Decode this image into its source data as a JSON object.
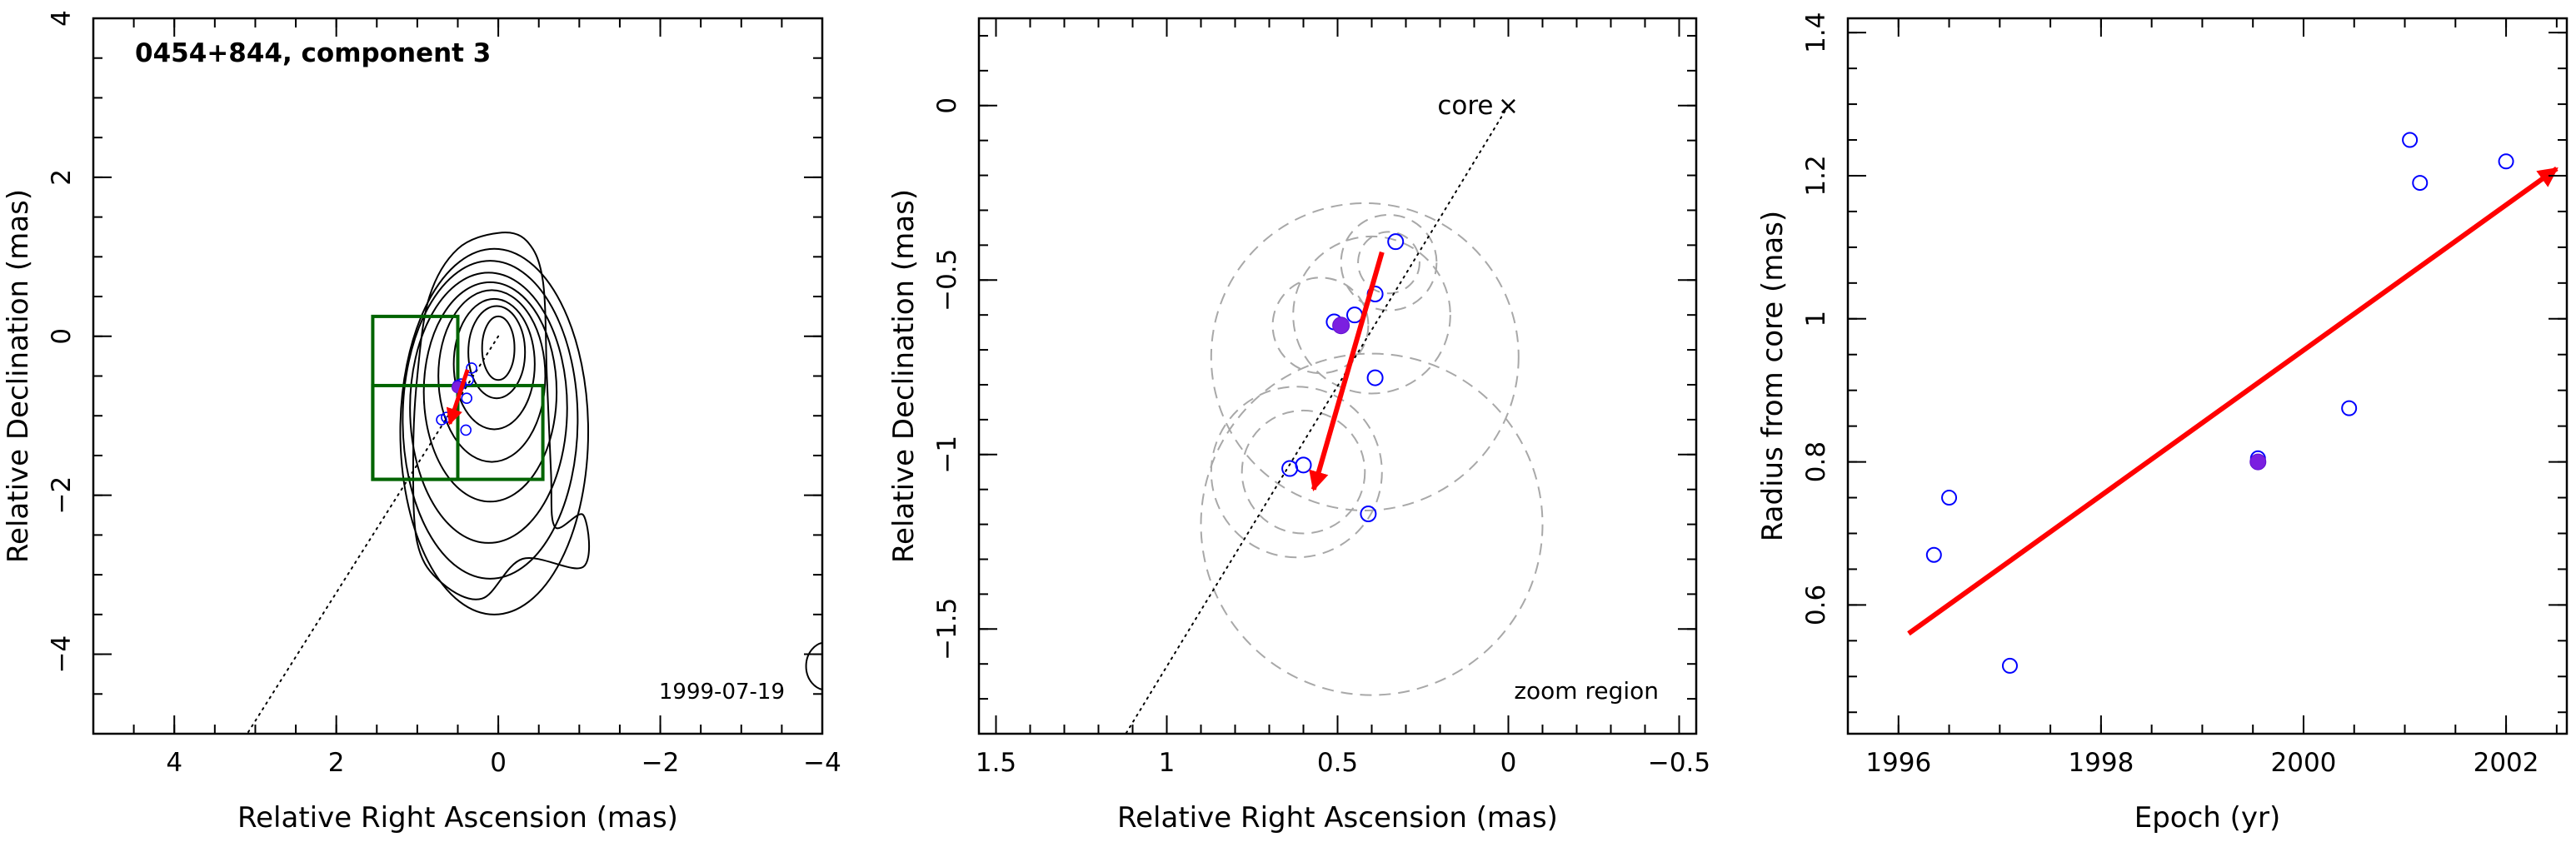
{
  "chart_data": [
    {
      "type": "scatter",
      "panel": "map",
      "title": "0454+844, component 3",
      "annotation": "1999-07-19",
      "xlabel": "Relative Right Ascension (mas)",
      "ylabel": "Relative Declination (mas)",
      "xlim": [
        5,
        -4
      ],
      "ylim": [
        -5,
        4
      ],
      "xticks": [
        4,
        2,
        0,
        -2,
        -4
      ],
      "yticks": [
        -4,
        -2,
        0,
        2,
        4
      ],
      "points": [
        [
          0.7,
          -1.05
        ],
        [
          0.64,
          -1.02
        ],
        [
          0.4,
          -1.18
        ],
        [
          0.5,
          -0.62
        ],
        [
          0.46,
          -0.6
        ],
        [
          0.37,
          -0.55
        ],
        [
          0.33,
          -0.4
        ],
        [
          0.39,
          -0.78
        ]
      ],
      "highlight": [
        0.5,
        -0.64
      ],
      "arrow": {
        "from": [
          0.38,
          -0.42
        ],
        "to": [
          0.6,
          -1.1
        ]
      },
      "jet_line": {
        "from": [
          0,
          0
        ],
        "to": [
          3.1,
          -5
        ]
      },
      "zoom_boxes": [
        {
          "ra_from": 1.55,
          "ra_to": 0.5,
          "dec_from": -1.8,
          "dec_to": 0.25
        },
        {
          "ra_from": 1.55,
          "ra_to": -0.55,
          "dec_from": -1.8,
          "dec_to": -0.62
        }
      ],
      "contours": [
        {
          "ra": 0,
          "dec": -0.15,
          "rx": 0.2,
          "ry": 0.4
        },
        {
          "ra": 0.02,
          "dec": -0.2,
          "rx": 0.35,
          "ry": 0.58
        },
        {
          "ra": 0.05,
          "dec": -0.35,
          "rx": 0.5,
          "ry": 0.82
        },
        {
          "ra": 0.08,
          "dec": -0.5,
          "rx": 0.66,
          "ry": 1.08
        },
        {
          "ra": 0.1,
          "dec": -0.7,
          "rx": 0.82,
          "ry": 1.38
        },
        {
          "ra": 0.12,
          "dec": -0.9,
          "rx": 0.97,
          "ry": 1.7
        },
        {
          "ra": 0.1,
          "dec": -1.05,
          "rx": 1.08,
          "ry": 2.0
        },
        {
          "ra": 0.05,
          "dec": -1.2,
          "rx": 1.16,
          "ry": 2.3
        }
      ],
      "outer_contour": [
        [
          1.05,
          -1.5
        ],
        [
          1.0,
          -0.5
        ],
        [
          0.85,
          0.5
        ],
        [
          0.5,
          1.1
        ],
        [
          0.0,
          1.3
        ],
        [
          -0.35,
          1.2
        ],
        [
          -0.55,
          0.7
        ],
        [
          -0.6,
          -0.5
        ],
        [
          -0.65,
          -1.7
        ],
        [
          -0.7,
          -2.4
        ],
        [
          -1.05,
          -2.25
        ],
        [
          -1.05,
          -2.9
        ],
        [
          -0.3,
          -2.8
        ],
        [
          0.2,
          -3.3
        ],
        [
          0.7,
          -3.1
        ],
        [
          1.0,
          -2.6
        ]
      ],
      "edge_contour": {
        "ra": -4.05,
        "dec": -4.15,
        "r": 0.25
      }
    },
    {
      "type": "scatter",
      "panel": "zoom",
      "annotation": "zoom region",
      "core_label": "core",
      "core_marker": "×",
      "xlabel": "Relative Right Ascension (mas)",
      "ylabel": "Relative Declination (mas)",
      "xlim": [
        1.55,
        -0.55
      ],
      "ylim": [
        -1.8,
        0.25
      ],
      "xticks": [
        1.5,
        1,
        0.5,
        0,
        -0.5
      ],
      "xtick_labels": [
        "1.5",
        "1",
        "0.5",
        "0",
        "−0.5"
      ],
      "yticks": [
        0,
        -0.5,
        -1,
        -1.5
      ],
      "ytick_labels": [
        "0",
        "−0.5",
        "−1",
        "−1.5"
      ],
      "points": [
        [
          0.64,
          -1.04
        ],
        [
          0.6,
          -1.03
        ],
        [
          0.41,
          -1.17
        ],
        [
          0.51,
          -0.62
        ],
        [
          0.45,
          -0.6
        ],
        [
          0.39,
          -0.54
        ],
        [
          0.33,
          -0.39
        ],
        [
          0.39,
          -0.78
        ]
      ],
      "highlight": [
        0.49,
        -0.63
      ],
      "arrow": {
        "from": [
          0.37,
          -0.42
        ],
        "to": [
          0.57,
          -1.1
        ]
      },
      "jet_line": {
        "from": [
          0,
          0
        ],
        "to": [
          1.12,
          -1.8
        ]
      },
      "error_circles": [
        {
          "ra": 0.35,
          "dec": -0.45,
          "r": 0.09
        },
        {
          "ra": 0.35,
          "dec": -0.45,
          "r": 0.14
        },
        {
          "ra": 0.4,
          "dec": -0.6,
          "r": 0.23
        },
        {
          "ra": 0.42,
          "dec": -0.72,
          "r": 0.45
        },
        {
          "ra": 0.55,
          "dec": -0.63,
          "r": 0.14
        },
        {
          "ra": 0.6,
          "dec": -1.05,
          "r": 0.18
        },
        {
          "ra": 0.62,
          "dec": -1.05,
          "r": 0.25
        },
        {
          "ra": 0.4,
          "dec": -1.2,
          "r": 0.5
        }
      ]
    },
    {
      "type": "scatter",
      "panel": "radius",
      "xlabel": "Epoch (yr)",
      "ylabel": "Radius from core (mas)",
      "xlim": [
        1995.5,
        2002.6
      ],
      "ylim": [
        0.42,
        1.42
      ],
      "xticks": [
        1996,
        1998,
        2000,
        2002
      ],
      "yticks": [
        0.6,
        0.8,
        1,
        1.2,
        1.4
      ],
      "ytick_labels": [
        "0.6",
        "0.8",
        "1",
        "1.2",
        "1.4"
      ],
      "points": [
        [
          1996.35,
          0.67
        ],
        [
          1996.5,
          0.75
        ],
        [
          1997.1,
          0.515
        ],
        [
          1999.55,
          0.805
        ],
        [
          2000.45,
          0.875
        ],
        [
          2001.05,
          1.25
        ],
        [
          2001.15,
          1.19
        ],
        [
          2002.0,
          1.22
        ]
      ],
      "highlight": [
        1999.55,
        0.8
      ],
      "arrow": {
        "from": [
          1996.1,
          0.56
        ],
        "to": [
          2002.5,
          1.21
        ]
      }
    }
  ]
}
